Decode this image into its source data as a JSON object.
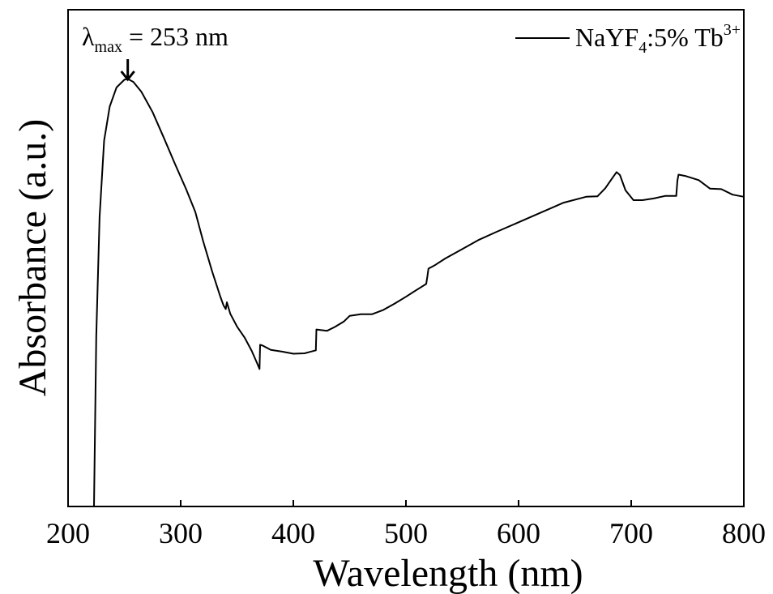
{
  "chart_data": {
    "type": "line",
    "title": "",
    "xlabel": "Wavelength (nm)",
    "ylabel": "Absorbance (a.u.)",
    "xlim": [
      200,
      800
    ],
    "ylim": [
      0,
      100
    ],
    "x_ticks": [
      200,
      300,
      400,
      500,
      600,
      700,
      800
    ],
    "x_tick_labels": [
      "200",
      "300",
      "400",
      "500",
      "600",
      "700",
      "800"
    ],
    "y_tick_labels_shown": false,
    "grid": false,
    "legend_position": "top-right",
    "legend": {
      "base": "NaYF",
      "sub": "4",
      "mid": ":5% Tb",
      "sup": "3+"
    },
    "annotation": {
      "lambda": "λ",
      "sub": "max",
      "rest": " = 253 nm",
      "x": 253,
      "arrow": "down"
    },
    "series": [
      {
        "name": "NaYF4:5% Tb3+",
        "color": "#000000",
        "x": [
          223,
          225,
          228,
          232,
          237,
          243,
          250,
          253,
          258,
          265,
          275,
          285,
          295,
          305,
          313,
          320,
          328,
          335,
          338,
          340,
          341,
          344,
          350,
          357,
          363,
          368,
          370,
          370.5,
          373,
          380,
          390,
          400,
          410,
          420,
          420.5,
          430,
          437,
          445,
          450,
          460,
          470,
          480,
          490,
          500,
          510,
          518,
          519,
          520,
          525,
          535,
          550,
          565,
          580,
          600,
          620,
          640,
          660,
          670,
          677,
          683,
          687,
          690,
          695,
          702,
          710,
          720,
          730,
          740,
          741,
          742,
          748,
          760,
          770,
          780,
          790,
          800
        ],
        "y": [
          0,
          40,
          68,
          86,
          94,
          98.5,
          100.3,
          100.5,
          99.8,
          97.5,
          92.7,
          86.7,
          80.5,
          74.5,
          69.2,
          62.3,
          55.2,
          49.5,
          47.3,
          46.4,
          48.0,
          45.3,
          42.3,
          39.6,
          36.6,
          33.6,
          32.3,
          38.0,
          37.8,
          36.8,
          36.4,
          35.9,
          36.0,
          36.7,
          41.6,
          41.3,
          42.2,
          43.5,
          44.8,
          45.2,
          45.2,
          46.2,
          47.7,
          49.3,
          51.0,
          52.3,
          54.0,
          55.9,
          56.6,
          58.3,
          60.5,
          62.7,
          64.5,
          66.8,
          69.1,
          71.4,
          72.8,
          72.9,
          74.8,
          77.1,
          78.6,
          77.9,
          74.3,
          72.0,
          72.0,
          72.4,
          73.0,
          73.0,
          76.6,
          78.0,
          77.7,
          76.7,
          74.7,
          74.6,
          73.3,
          72.8
        ]
      }
    ]
  }
}
